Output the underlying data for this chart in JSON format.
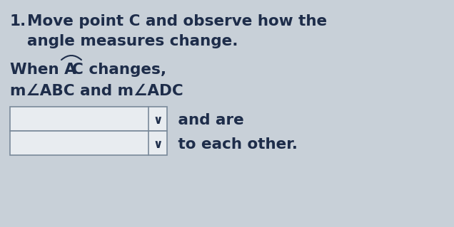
{
  "bg_color": "#c8d0d8",
  "text_color": "#1e2d4a",
  "box_color": "#e8ecf0",
  "box_border": "#7a8a9a",
  "font_size_main": 15.5,
  "line1_num": "1.",
  "line1_text": "Move point C and observe how the",
  "line2_text": "angle measures change.",
  "line3_when": "When A",
  "line3_C": "C",
  "line3_changes": " changes,",
  "line4": "m∠ABC and m∠ADC",
  "dropdown1_suffix": " and are",
  "dropdown2_suffix": " to each other.",
  "chevron": "∨"
}
